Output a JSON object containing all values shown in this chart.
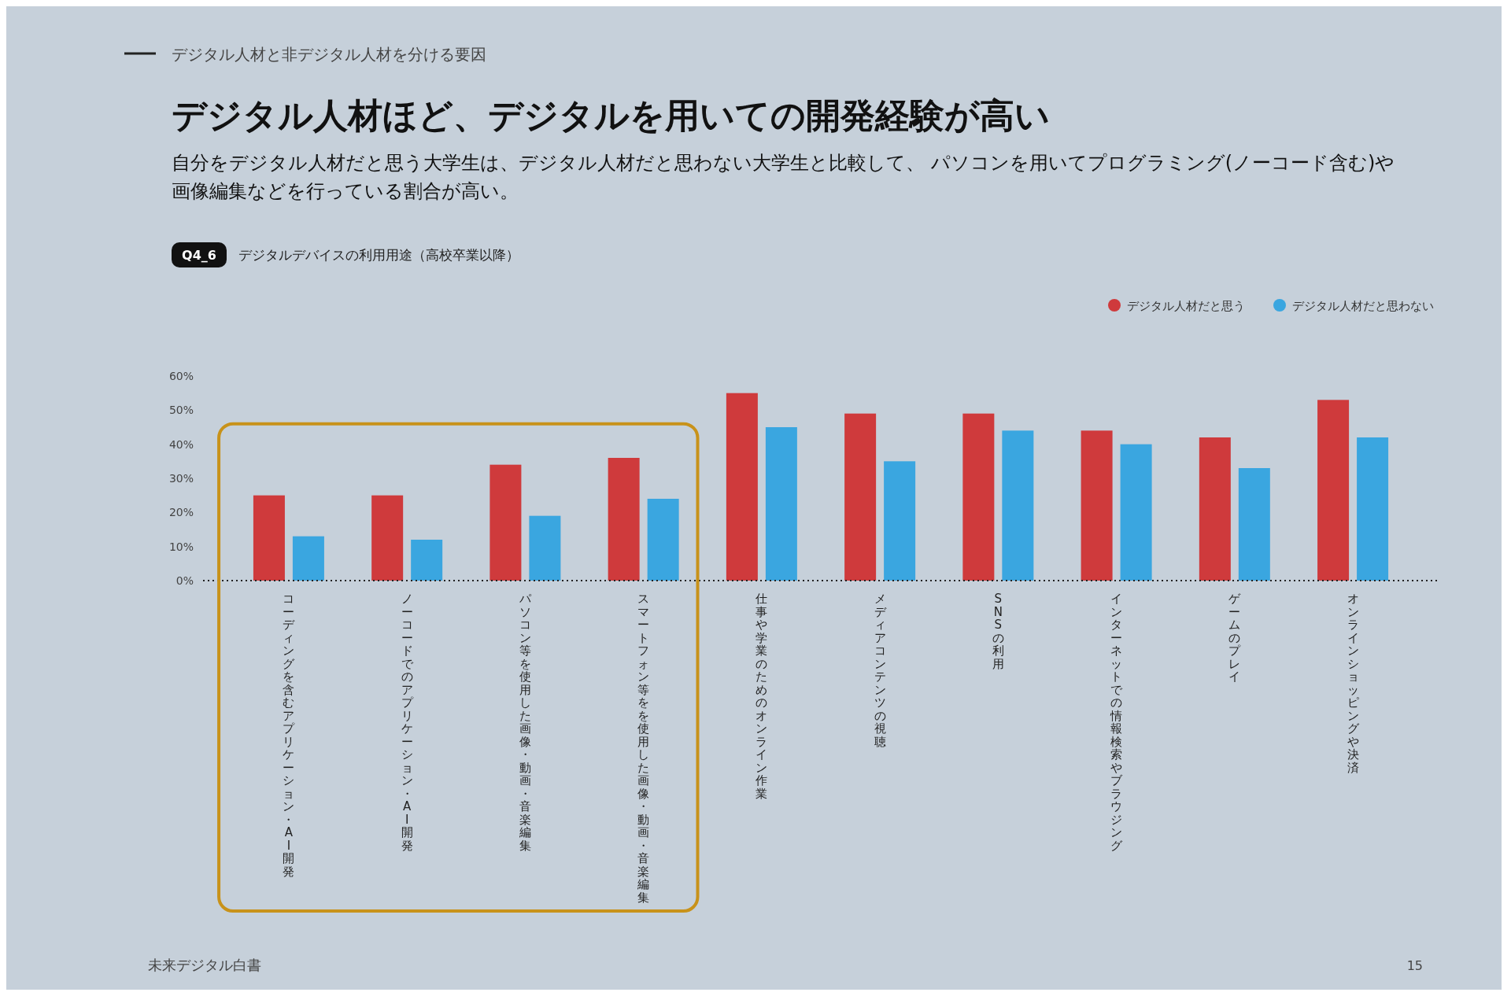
{
  "chart_data": {
    "type": "bar",
    "title": "デジタル人材ほど、デジタルを用いての開発経験が高い",
    "subtitle": "自分をデジタル人材だと思う大学生は、デジタル人材だと思わない大学生と比較して、 パソコンを用いてプログラミング(ノーコード含む)や画像編集などを行っている割合が高い。",
    "annotations": [
      "デジタル人材と非デジタル人材を分ける要因",
      "Q4_6",
      "デジタルデバイスの利用用途（高校卒業以降）",
      "未来デジタル白書",
      "15"
    ],
    "categories": [
      "コーディングを含むアプリケーション・AI開発",
      "ノーコードでのアプリケーション・AI開発",
      "パソコン等を使用した画像・動画・音楽編集",
      "スマートフォン等をを使用した画像・動画・音楽編集",
      "仕事や学業のためのオンライン作業",
      "メディアコンテンツの視聴",
      "SNSの利用",
      "インターネットでの情報検索やブラウジング",
      "ゲームのプレイ",
      "オンラインショッピングや決済"
    ],
    "series": [
      {
        "name": "デジタル人材だと思う",
        "color": "#cf3a3c",
        "values": [
          25,
          25,
          34,
          36,
          55,
          49,
          49,
          44,
          42,
          53
        ]
      },
      {
        "name": "デジタル人材だと思わない",
        "color": "#3aa6e0",
        "values": [
          13,
          12,
          19,
          24,
          45,
          35,
          44,
          40,
          33,
          42
        ]
      }
    ],
    "ylim": [
      0,
      60
    ],
    "yticks": [
      {
        "value": 0,
        "label": "0%"
      },
      {
        "value": 10,
        "label": "10%"
      },
      {
        "value": 20,
        "label": "20%"
      },
      {
        "value": 30,
        "label": "30%"
      },
      {
        "value": 40,
        "label": "40%"
      },
      {
        "value": 50,
        "label": "50%"
      },
      {
        "value": 60,
        "label": "60%"
      }
    ],
    "grid": false,
    "legend": "top right"
  }
}
